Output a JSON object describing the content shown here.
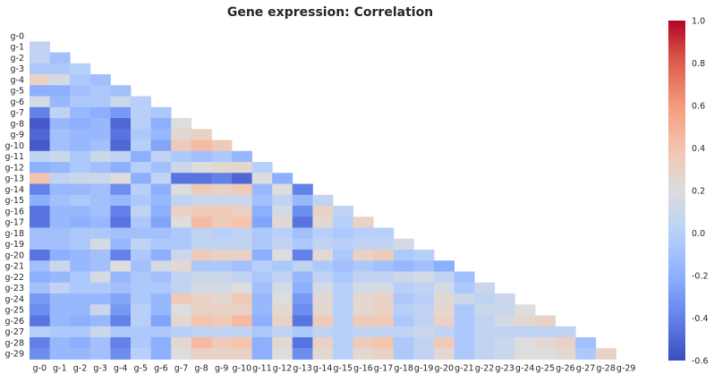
{
  "chart_data": {
    "type": "heatmap",
    "title": "Gene expression: Correlation",
    "mask": "upper-triangle-and-diagonal",
    "x_labels": [
      "g-0",
      "g-1",
      "g-2",
      "g-3",
      "g-4",
      "g-5",
      "g-6",
      "g-7",
      "g-8",
      "g-9",
      "g-10",
      "g-11",
      "g-12",
      "g-13",
      "g-14",
      "g-15",
      "g-16",
      "g-17",
      "g-18",
      "g-19",
      "g-20",
      "g-21",
      "g-22",
      "g-23",
      "g-24",
      "g-25",
      "g-26",
      "g-27",
      "g-28",
      "g-29"
    ],
    "y_labels": [
      "g-0",
      "g-1",
      "g-2",
      "g-3",
      "g-4",
      "g-5",
      "g-6",
      "g-7",
      "g-8",
      "g-9",
      "g-10",
      "g-11",
      "g-12",
      "g-13",
      "g-14",
      "g-15",
      "g-16",
      "g-17",
      "g-18",
      "g-19",
      "g-20",
      "g-21",
      "g-22",
      "g-23",
      "g-24",
      "g-25",
      "g-26",
      "g-27",
      "g-28",
      "g-29"
    ],
    "colorscale": "coolwarm",
    "vmin": -0.6,
    "vmax": 1.0,
    "colorbar_ticks": [
      "1.0",
      "0.8",
      "0.6",
      "0.4",
      "0.2",
      "0.0",
      "-0.2",
      "-0.4",
      "-0.6"
    ],
    "matrix": [
      [],
      [
        0.05
      ],
      [
        0.05,
        -0.1
      ],
      [
        -0.05,
        -0.05,
        0.0
      ],
      [
        0.3,
        0.15,
        -0.05,
        -0.1
      ],
      [
        -0.2,
        -0.2,
        -0.1,
        -0.05,
        -0.1
      ],
      [
        0.15,
        -0.15,
        -0.05,
        -0.05,
        0.1,
        0.0
      ],
      [
        -0.4,
        0.05,
        -0.15,
        -0.2,
        -0.3,
        0.0,
        -0.05
      ],
      [
        -0.55,
        -0.15,
        -0.2,
        -0.15,
        -0.5,
        0.0,
        -0.2,
        0.2
      ],
      [
        -0.5,
        -0.1,
        -0.15,
        -0.15,
        -0.45,
        -0.05,
        -0.15,
        0.25,
        0.3
      ],
      [
        -0.55,
        -0.1,
        -0.15,
        -0.1,
        -0.5,
        0.0,
        -0.25,
        0.35,
        0.45,
        0.35
      ],
      [
        0.05,
        0.1,
        -0.05,
        0.1,
        0.05,
        -0.2,
        0.05,
        -0.05,
        -0.1,
        -0.05,
        -0.15
      ],
      [
        -0.2,
        -0.15,
        -0.05,
        -0.1,
        -0.2,
        0.0,
        -0.1,
        0.1,
        0.2,
        0.25,
        0.25,
        0.0
      ],
      [
        0.4,
        0.05,
        0.1,
        0.1,
        0.2,
        -0.2,
        0.05,
        -0.45,
        -0.45,
        -0.4,
        -0.5,
        0.2,
        -0.2
      ],
      [
        -0.4,
        -0.15,
        -0.15,
        -0.1,
        -0.35,
        0.0,
        -0.2,
        0.2,
        0.35,
        0.3,
        0.35,
        -0.15,
        0.2,
        -0.4
      ],
      [
        -0.2,
        -0.1,
        -0.05,
        -0.1,
        -0.15,
        -0.05,
        -0.15,
        0.05,
        0.1,
        0.1,
        0.1,
        -0.1,
        0.05,
        -0.15,
        0.05
      ],
      [
        -0.45,
        -0.15,
        -0.15,
        -0.1,
        -0.4,
        0.05,
        -0.2,
        0.3,
        0.35,
        0.35,
        0.3,
        -0.2,
        0.15,
        -0.35,
        0.3,
        0.05
      ],
      [
        -0.45,
        -0.15,
        -0.2,
        -0.15,
        -0.45,
        -0.05,
        -0.25,
        0.2,
        0.45,
        0.35,
        0.4,
        -0.25,
        0.25,
        -0.45,
        0.25,
        0.0,
        0.3
      ],
      [
        -0.1,
        -0.1,
        -0.05,
        -0.05,
        -0.1,
        -0.1,
        -0.1,
        -0.05,
        0.05,
        0.0,
        0.05,
        -0.05,
        0.0,
        -0.1,
        0.0,
        -0.05,
        0.0,
        0.0
      ],
      [
        -0.1,
        -0.1,
        -0.05,
        0.15,
        -0.15,
        0.05,
        -0.05,
        -0.05,
        0.05,
        0.05,
        0.05,
        -0.05,
        0.05,
        -0.05,
        0.05,
        0.0,
        0.05,
        0.05,
        0.15
      ],
      [
        -0.45,
        -0.2,
        -0.15,
        -0.1,
        -0.4,
        -0.05,
        -0.2,
        0.1,
        0.35,
        0.3,
        0.3,
        -0.2,
        0.2,
        -0.4,
        0.25,
        -0.05,
        0.3,
        0.35,
        -0.05,
        0.0
      ],
      [
        -0.1,
        0.1,
        -0.15,
        -0.1,
        0.2,
        -0.1,
        0.15,
        0.25,
        -0.05,
        -0.05,
        -0.1,
        0.0,
        -0.05,
        0.05,
        -0.05,
        -0.1,
        -0.05,
        -0.1,
        -0.15,
        -0.1,
        -0.2
      ],
      [
        -0.2,
        -0.15,
        -0.05,
        0.15,
        -0.15,
        -0.05,
        -0.1,
        0.05,
        0.1,
        0.1,
        0.05,
        -0.05,
        0.05,
        -0.15,
        0.05,
        -0.05,
        0.05,
        0.05,
        0.1,
        0.15,
        0.05,
        -0.1
      ],
      [
        -0.1,
        0.05,
        -0.05,
        -0.05,
        -0.1,
        -0.05,
        -0.05,
        0.05,
        0.15,
        0.15,
        0.2,
        -0.1,
        0.15,
        -0.2,
        0.15,
        0.0,
        0.15,
        0.15,
        0.0,
        0.05,
        0.15,
        -0.05,
        0.1
      ],
      [
        -0.3,
        -0.15,
        -0.15,
        -0.15,
        -0.25,
        -0.05,
        -0.15,
        0.35,
        0.3,
        0.25,
        0.35,
        -0.15,
        0.2,
        -0.3,
        0.25,
        0.0,
        0.25,
        0.3,
        -0.05,
        0.0,
        0.25,
        0.1,
        0.05,
        0.1
      ],
      [
        -0.35,
        -0.15,
        -0.15,
        0.1,
        -0.3,
        0.0,
        -0.15,
        0.2,
        0.3,
        0.3,
        0.3,
        -0.15,
        0.25,
        -0.35,
        0.25,
        0.0,
        0.25,
        0.3,
        0.0,
        0.05,
        0.25,
        -0.05,
        0.1,
        0.1,
        0.2
      ],
      [
        -0.45,
        -0.15,
        -0.2,
        -0.15,
        -0.4,
        0.0,
        -0.25,
        0.25,
        0.4,
        0.35,
        0.45,
        -0.2,
        0.3,
        -0.45,
        0.35,
        0.0,
        0.35,
        0.35,
        -0.05,
        0.05,
        0.3,
        -0.05,
        0.05,
        0.15,
        0.25,
        0.3
      ],
      [
        0.0,
        -0.05,
        -0.05,
        0.1,
        -0.05,
        -0.05,
        -0.05,
        0.0,
        0.05,
        0.05,
        0.05,
        -0.05,
        0.05,
        -0.05,
        0.05,
        0.0,
        0.05,
        0.05,
        0.05,
        0.1,
        0.05,
        -0.05,
        0.05,
        0.05,
        0.05,
        0.05,
        0.05
      ],
      [
        -0.4,
        -0.15,
        -0.2,
        -0.1,
        -0.4,
        -0.05,
        -0.2,
        0.25,
        0.45,
        0.35,
        0.4,
        -0.2,
        0.25,
        -0.45,
        0.3,
        0.0,
        0.35,
        0.4,
        -0.05,
        0.05,
        0.35,
        -0.05,
        0.05,
        0.1,
        0.2,
        0.25,
        0.3,
        -0.1
      ],
      [
        -0.35,
        -0.15,
        -0.15,
        -0.1,
        -0.35,
        0.0,
        -0.2,
        0.2,
        0.3,
        0.3,
        0.3,
        -0.2,
        0.2,
        -0.35,
        0.25,
        0.0,
        0.25,
        0.3,
        -0.05,
        0.05,
        0.25,
        -0.05,
        0.05,
        0.1,
        0.2,
        0.2,
        0.25,
        -0.05,
        0.3
      ]
    ]
  }
}
